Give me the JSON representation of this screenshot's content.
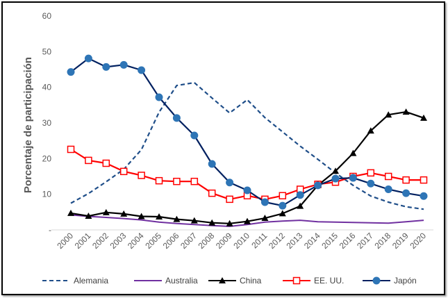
{
  "chart_data": {
    "type": "line",
    "title": "",
    "xlabel": "",
    "ylabel": "Porcentaje de participación",
    "ylim": [
      0,
      60
    ],
    "yticks": [
      "",
      "10",
      "20",
      "30",
      "40",
      "50",
      "60"
    ],
    "grid": false,
    "legend_position": "bottom",
    "categories": [
      "2000",
      "2001",
      "2002",
      "2003",
      "2004",
      "2005",
      "2006",
      "2007",
      "2008",
      "2009",
      "2010",
      "2011",
      "2012",
      "2013",
      "2014",
      "2015",
      "2016",
      "2017",
      "2018",
      "2019",
      "2020"
    ],
    "series": [
      {
        "name": "Alemania",
        "color": "#1F4E89",
        "style": "dashed",
        "marker": "none",
        "values": [
          7.5,
          10.2,
          13.5,
          17.0,
          22.5,
          33.0,
          40.5,
          41.3,
          37.0,
          32.8,
          36.5,
          31.5,
          27.5,
          23.5,
          19.8,
          16.0,
          12.5,
          9.5,
          7.8,
          6.5,
          5.8
        ]
      },
      {
        "name": "Australia",
        "color": "#7030A0",
        "style": "solid",
        "marker": "none",
        "values": [
          4.2,
          3.8,
          3.5,
          3.2,
          2.8,
          2.2,
          1.8,
          1.5,
          1.2,
          1.0,
          1.5,
          2.2,
          2.5,
          2.7,
          2.3,
          2.2,
          2.1,
          2.0,
          1.9,
          2.3,
          2.7
        ]
      },
      {
        "name": "China",
        "color": "#000000",
        "style": "solid",
        "marker": "triangle",
        "values": [
          4.7,
          3.9,
          4.9,
          4.5,
          3.8,
          3.7,
          3.0,
          2.6,
          2.0,
          1.8,
          2.4,
          3.3,
          4.6,
          6.7,
          12.5,
          16.5,
          21.5,
          27.8,
          32.3,
          33.1,
          31.4
        ]
      },
      {
        "name": "EE. UU.",
        "color": "#FF0000",
        "style": "solid",
        "marker": "square-open",
        "values": [
          22.6,
          19.5,
          18.7,
          16.4,
          15.3,
          13.8,
          13.6,
          13.6,
          10.3,
          8.6,
          9.6,
          8.6,
          9.6,
          11.4,
          12.8,
          13.4,
          15.0,
          16.0,
          15.0,
          14.0,
          14.0
        ]
      },
      {
        "name": "Japón",
        "color": "#002060",
        "style": "solid",
        "marker": "circle",
        "values": [
          44.3,
          48.1,
          45.7,
          46.3,
          44.8,
          37.2,
          31.4,
          26.5,
          18.5,
          13.3,
          11.1,
          7.8,
          6.8,
          9.8,
          12.5,
          14.4,
          14.6,
          13.0,
          11.4,
          10.3,
          9.5
        ]
      }
    ]
  }
}
